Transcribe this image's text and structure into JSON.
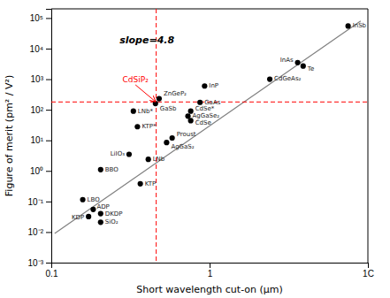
{
  "chart_data": {
    "type": "scatter",
    "log": true,
    "x_label": "Short wavelength cut-on (μm)",
    "y_label": "Figure of merit (pm² / V²)",
    "xlim": [
      0.1,
      10
    ],
    "ylim": [
      0.001,
      200000
    ],
    "xticks": [
      0.1,
      1,
      {
        "value": 10,
        "label": "1C"
      }
    ],
    "yticks": [
      {
        "value": 0.001,
        "label": "10⁻³"
      },
      {
        "value": 0.01,
        "label": "10⁻²"
      },
      {
        "value": 0.1,
        "label": "10⁻¹"
      },
      {
        "value": 1,
        "label": "10⁰"
      },
      {
        "value": 10,
        "label": "10¹"
      },
      {
        "value": 100,
        "label": "10²"
      },
      {
        "value": 1000,
        "label": "10³"
      },
      {
        "value": 10000,
        "label": "10⁴"
      },
      {
        "value": 100000,
        "label": "10⁵"
      }
    ],
    "grid": false,
    "color": "black",
    "marker": "circle",
    "x": [
      7.5,
      3.6,
      3.9,
      2.4,
      0.93,
      0.48,
      0.455,
      0.87,
      0.33,
      0.76,
      0.73,
      0.35,
      0.76,
      0.58,
      0.535,
      0.31,
      0.41,
      0.205,
      0.365,
      0.158,
      0.184,
      0.205,
      0.172,
      0.205
    ],
    "values": [
      55000,
      3500,
      2700,
      1000,
      600,
      230,
      160,
      175,
      90,
      90,
      62,
      28,
      44,
      12,
      8.5,
      3.5,
      2.4,
      1.1,
      0.38,
      0.115,
      0.055,
      0.04,
      0.032,
      0.021
    ],
    "point_labels": [
      "InSb",
      "InAs",
      "Te",
      "CdGeAs₂",
      "InP",
      "ZnGeP₂",
      "GaSb",
      "GaAs",
      "LNb*",
      "CdSe*",
      "AgGaSe₂",
      "KTP*",
      "CdSe",
      "Proust",
      "AgGaS₂",
      "LiIO₃",
      "LNb",
      "BBO",
      "KTP",
      "LBO",
      "ADP",
      "DKDP",
      "KDP",
      "SiO₂"
    ],
    "trend": {
      "x": [
        0.105,
        9.0
      ],
      "values": [
        0.009,
        80000
      ],
      "color": "gray"
    },
    "reference_lines": [
      {
        "axis": "x",
        "value": 0.46,
        "color": "red",
        "line_style": "dashed"
      },
      {
        "axis": "y",
        "value": 180,
        "color": "red",
        "line_style": "dashed"
      }
    ],
    "annotations": [
      {
        "text": "slope=4.8",
        "x": 0.27,
        "y": 15000
      },
      {
        "text": "CdSiP₂",
        "x": 0.455,
        "y": 185,
        "text_x": 0.34,
        "text_y": 700,
        "color": "red"
      }
    ]
  }
}
